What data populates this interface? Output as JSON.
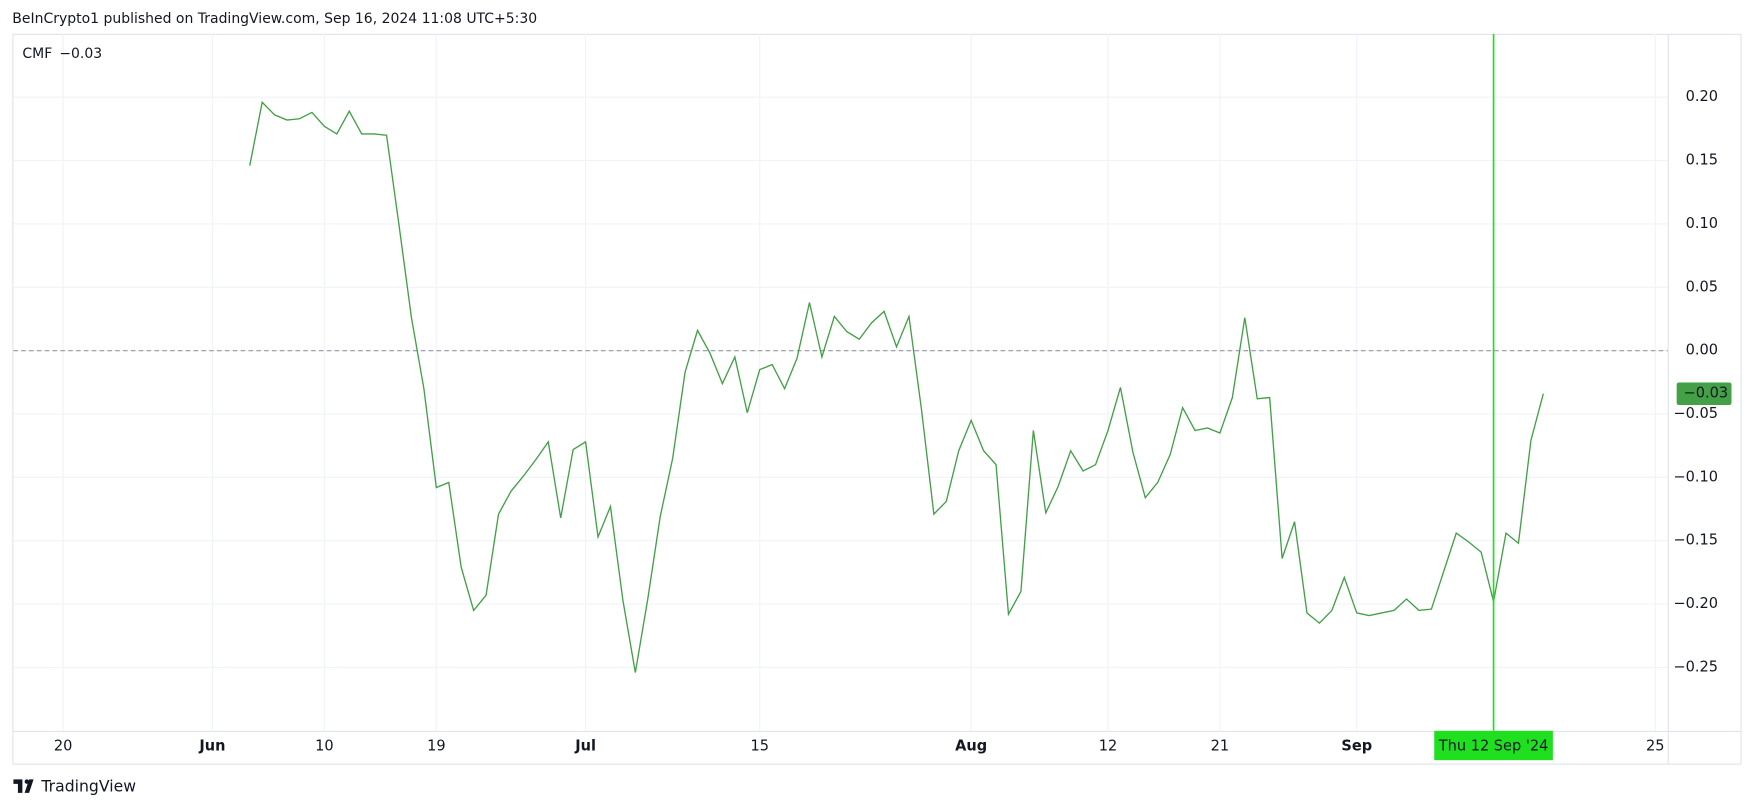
{
  "header": {
    "text": "BeInCrypto1 published on TradingView.com, Sep 16, 2024 11:08 UTC+5:30"
  },
  "footer": {
    "brand": "TradingView"
  },
  "chart_data": {
    "type": "line",
    "x": [
      "2024-06-04",
      "2024-06-05",
      "2024-06-06",
      "2024-06-07",
      "2024-06-08",
      "2024-06-09",
      "2024-06-10",
      "2024-06-11",
      "2024-06-12",
      "2024-06-13",
      "2024-06-14",
      "2024-06-15",
      "2024-06-16",
      "2024-06-17",
      "2024-06-18",
      "2024-06-19",
      "2024-06-20",
      "2024-06-21",
      "2024-06-22",
      "2024-06-23",
      "2024-06-24",
      "2024-06-25",
      "2024-06-26",
      "2024-06-27",
      "2024-06-28",
      "2024-06-29",
      "2024-06-30",
      "2024-07-01",
      "2024-07-02",
      "2024-07-03",
      "2024-07-04",
      "2024-07-05",
      "2024-07-06",
      "2024-07-07",
      "2024-07-08",
      "2024-07-09",
      "2024-07-10",
      "2024-07-11",
      "2024-07-12",
      "2024-07-13",
      "2024-07-14",
      "2024-07-15",
      "2024-07-16",
      "2024-07-17",
      "2024-07-18",
      "2024-07-19",
      "2024-07-20",
      "2024-07-21",
      "2024-07-22",
      "2024-07-23",
      "2024-07-24",
      "2024-07-25",
      "2024-07-26",
      "2024-07-27",
      "2024-07-28",
      "2024-07-29",
      "2024-07-30",
      "2024-07-31",
      "2024-08-01",
      "2024-08-02",
      "2024-08-03",
      "2024-08-04",
      "2024-08-05",
      "2024-08-06",
      "2024-08-07",
      "2024-08-08",
      "2024-08-09",
      "2024-08-10",
      "2024-08-11",
      "2024-08-12",
      "2024-08-13",
      "2024-08-14",
      "2024-08-15",
      "2024-08-16",
      "2024-08-17",
      "2024-08-18",
      "2024-08-19",
      "2024-08-20",
      "2024-08-21",
      "2024-08-22",
      "2024-08-23",
      "2024-08-24",
      "2024-08-25",
      "2024-08-26",
      "2024-08-27",
      "2024-08-28",
      "2024-08-29",
      "2024-08-30",
      "2024-08-31",
      "2024-09-01",
      "2024-09-02",
      "2024-09-03",
      "2024-09-04",
      "2024-09-05",
      "2024-09-06",
      "2024-09-07",
      "2024-09-08",
      "2024-09-09",
      "2024-09-10",
      "2024-09-11",
      "2024-09-12",
      "2024-09-13",
      "2024-09-14",
      "2024-09-15",
      "2024-09-16"
    ],
    "series": [
      {
        "name": "CMF",
        "color": "#43a047",
        "values": [
          0.146,
          0.196,
          0.186,
          0.182,
          0.183,
          0.188,
          0.177,
          0.171,
          0.189,
          0.171,
          0.171,
          0.17,
          0.099,
          0.026,
          -0.03,
          -0.108,
          -0.104,
          -0.171,
          -0.205,
          -0.193,
          -0.129,
          -0.111,
          -0.099,
          -0.086,
          -0.072,
          -0.132,
          -0.078,
          -0.072,
          -0.147,
          -0.123,
          -0.197,
          -0.254,
          -0.196,
          -0.131,
          -0.085,
          -0.017,
          0.016,
          -0.002,
          -0.026,
          -0.005,
          -0.049,
          -0.015,
          -0.011,
          -0.03,
          -0.006,
          0.038,
          -0.005,
          0.027,
          0.015,
          0.009,
          0.022,
          0.031,
          0.003,
          0.027,
          -0.046,
          -0.129,
          -0.119,
          -0.079,
          -0.055,
          -0.079,
          -0.09,
          -0.208,
          -0.19,
          -0.063,
          -0.128,
          -0.107,
          -0.079,
          -0.095,
          -0.09,
          -0.063,
          -0.029,
          -0.08,
          -0.116,
          -0.104,
          -0.082,
          -0.045,
          -0.063,
          -0.061,
          -0.065,
          -0.037,
          0.026,
          -0.038,
          -0.037,
          -0.164,
          -0.135,
          -0.207,
          -0.215,
          -0.205,
          -0.179,
          -0.207,
          -0.209,
          -0.207,
          -0.205,
          -0.196,
          -0.205,
          -0.204,
          -0.174,
          -0.144,
          -0.151,
          -0.159,
          -0.198,
          -0.144,
          -0.152,
          -0.071,
          -0.034
        ]
      }
    ],
    "value_label": "−0.03",
    "baseline": 0,
    "xlim": [
      "2024-05-16",
      "2024-09-26"
    ],
    "ylim": [
      -0.3,
      0.25
    ],
    "xticks": [
      {
        "value": "2024-05-20",
        "label": "20"
      },
      {
        "value": "2024-06-01",
        "label": "Jun"
      },
      {
        "value": "2024-06-10",
        "label": "10"
      },
      {
        "value": "2024-06-19",
        "label": "19"
      },
      {
        "value": "2024-07-01",
        "label": "Jul"
      },
      {
        "value": "2024-07-15",
        "label": "15"
      },
      {
        "value": "2024-08-01",
        "label": "Aug"
      },
      {
        "value": "2024-08-12",
        "label": "12"
      },
      {
        "value": "2024-08-21",
        "label": "21"
      },
      {
        "value": "2024-09-01",
        "label": "Sep"
      },
      {
        "value": "2024-09-25",
        "label": "25"
      }
    ],
    "yticks": [
      {
        "value": 0.2,
        "label": "0.20"
      },
      {
        "value": 0.15,
        "label": "0.15"
      },
      {
        "value": 0.1,
        "label": "0.10"
      },
      {
        "value": 0.05,
        "label": "0.05"
      },
      {
        "value": 0,
        "label": "0.00"
      },
      {
        "value": -0.05,
        "label": "−0.05"
      },
      {
        "value": -0.1,
        "label": "−0.10"
      },
      {
        "value": -0.15,
        "label": "−0.15"
      },
      {
        "value": -0.2,
        "label": "−0.20"
      },
      {
        "value": -0.25,
        "label": "−0.25"
      }
    ],
    "grid": true,
    "crosshair": {
      "x": "2024-09-12",
      "label": "Thu 12 Sep '24",
      "color": "#1fe01f"
    }
  }
}
